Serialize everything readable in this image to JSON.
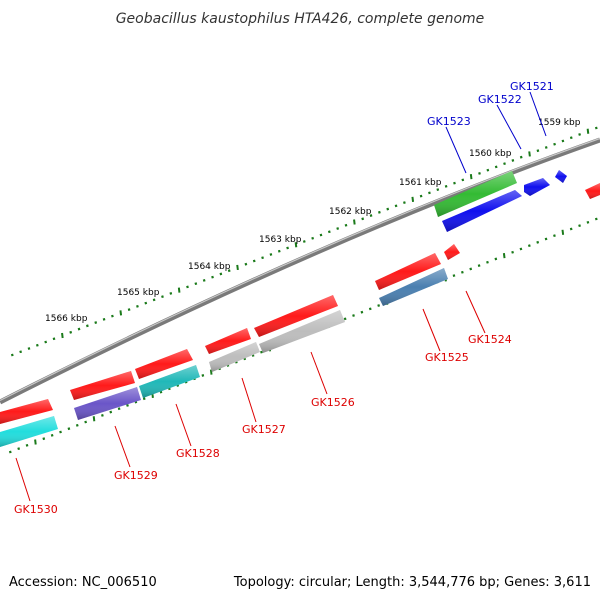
{
  "title": "Geobacillus kaustophilus HTA426, complete genome",
  "footer": {
    "accession": "Accession: NC_006510",
    "topology": "Topology: circular; Length: 3,544,776 bp; Genes: 3,611"
  },
  "colors": {
    "backbone": "#808080",
    "tick": "#1a7a1a",
    "forward_label": "#0000cc",
    "reverse_label": "#dd0000"
  },
  "scale": {
    "unit": "kbp",
    "labels": [
      "1559 kbp",
      "1560 kbp",
      "1561 kbp",
      "1562 kbp",
      "1563 kbp",
      "1564 kbp",
      "1565 kbp",
      "1566 kbp"
    ]
  },
  "genes": [
    {
      "name": "GK1521",
      "strand": "forward",
      "color": "#1010ee"
    },
    {
      "name": "GK1522",
      "strand": "forward",
      "color": "#1010ee"
    },
    {
      "name": "GK1523",
      "strand": "forward",
      "color": "#33bb33"
    },
    {
      "name": "GK1524",
      "strand": "reverse",
      "color": "#ff1a1a"
    },
    {
      "name": "GK1525",
      "strand": "reverse",
      "color": "#4a7fb0"
    },
    {
      "name": "GK1526",
      "strand": "reverse",
      "color": "#bdbdbd"
    },
    {
      "name": "GK1527",
      "strand": "reverse",
      "color": "#bdbdbd"
    },
    {
      "name": "GK1528",
      "strand": "reverse",
      "color": "#20b8b8"
    },
    {
      "name": "GK1529",
      "strand": "reverse",
      "color": "#6a55c8"
    },
    {
      "name": "GK1530",
      "strand": "reverse",
      "color": "#22dddd"
    }
  ]
}
